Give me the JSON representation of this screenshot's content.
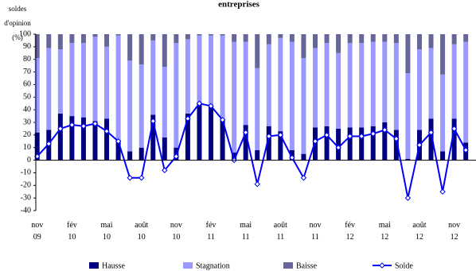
{
  "chart_data": {
    "type": "bar",
    "stacked": true,
    "title": "entreprises",
    "y_label": "soldes d'opinion (%)",
    "categories": [
      "nov 09",
      null,
      null,
      "fév 10",
      null,
      null,
      "mai 10",
      null,
      null,
      "août 10",
      null,
      null,
      "nov 10",
      null,
      null,
      "fév 11",
      null,
      null,
      "mai 11",
      null,
      null,
      "août 11",
      null,
      null,
      "nov 11",
      null,
      null,
      "fév 12",
      null,
      null,
      "mai 12",
      null,
      null,
      "août 12",
      null,
      null,
      "nov 12",
      null
    ],
    "ylim": [
      -40,
      100
    ],
    "yticks": [
      -40,
      -30,
      -20,
      -10,
      0,
      10,
      20,
      30,
      40,
      50,
      60,
      70,
      80,
      90,
      100
    ],
    "series": [
      {
        "name": "Hausse",
        "color": "#000080",
        "values": [
          22,
          24,
          37,
          35,
          34,
          31,
          33,
          16,
          7,
          10,
          36,
          18,
          10,
          37,
          46,
          44,
          33,
          6,
          28,
          8,
          27,
          23,
          8,
          5,
          26,
          27,
          25,
          26,
          26,
          27,
          30,
          24,
          1,
          24,
          33,
          7,
          33,
          14
        ]
      },
      {
        "name": "Stagnation",
        "color": "#9999ff",
        "values": [
          59,
          65,
          51,
          58,
          59,
          67,
          57,
          83,
          72,
          66,
          59,
          56,
          83,
          59,
          53,
          55,
          66,
          88,
          66,
          65,
          65,
          74,
          86,
          76,
          63,
          66,
          60,
          67,
          67,
          67,
          64,
          69,
          68,
          64,
          56,
          61,
          59,
          80
        ]
      },
      {
        "name": "Baisse",
        "color": "#666699",
        "values": [
          19,
          11,
          12,
          7,
          7,
          2,
          10,
          1,
          21,
          24,
          5,
          26,
          7,
          4,
          1,
          1,
          1,
          6,
          6,
          27,
          8,
          3,
          6,
          19,
          11,
          7,
          15,
          7,
          7,
          6,
          6,
          7,
          31,
          12,
          11,
          32,
          8,
          6
        ]
      },
      {
        "name": "Solde",
        "type": "line",
        "color": "#0000ff",
        "values": [
          3,
          13,
          25,
          28,
          27,
          29,
          23,
          15,
          -14,
          -14,
          31,
          -8,
          3,
          33,
          45,
          43,
          32,
          0,
          22,
          -19,
          19,
          20,
          2,
          -14,
          15,
          20,
          10,
          19,
          19,
          21,
          24,
          17,
          -30,
          12,
          22,
          -25,
          25,
          8
        ]
      }
    ]
  }
}
